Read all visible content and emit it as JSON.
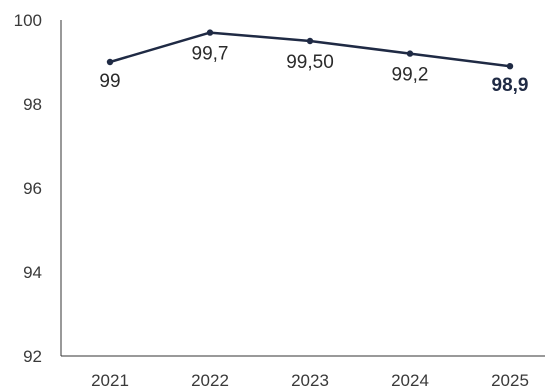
{
  "chart_data": {
    "type": "line",
    "categories": [
      "2021",
      "2022",
      "2023",
      "2024",
      "2025"
    ],
    "series": [
      {
        "values": [
          99,
          99.7,
          99.5,
          99.2,
          98.9
        ],
        "labels": [
          "99",
          "99,7",
          "99,50",
          "99,2",
          "98,9"
        ],
        "emphasized_index": 4
      }
    ],
    "ylim": [
      92,
      100
    ],
    "yticks": [
      "92",
      "94",
      "96",
      "98",
      "100"
    ],
    "title": "",
    "xlabel": "",
    "ylabel": "",
    "grid": false,
    "legend": "none",
    "colors": {
      "line": "#1f2a44",
      "axis": "#333333"
    }
  }
}
